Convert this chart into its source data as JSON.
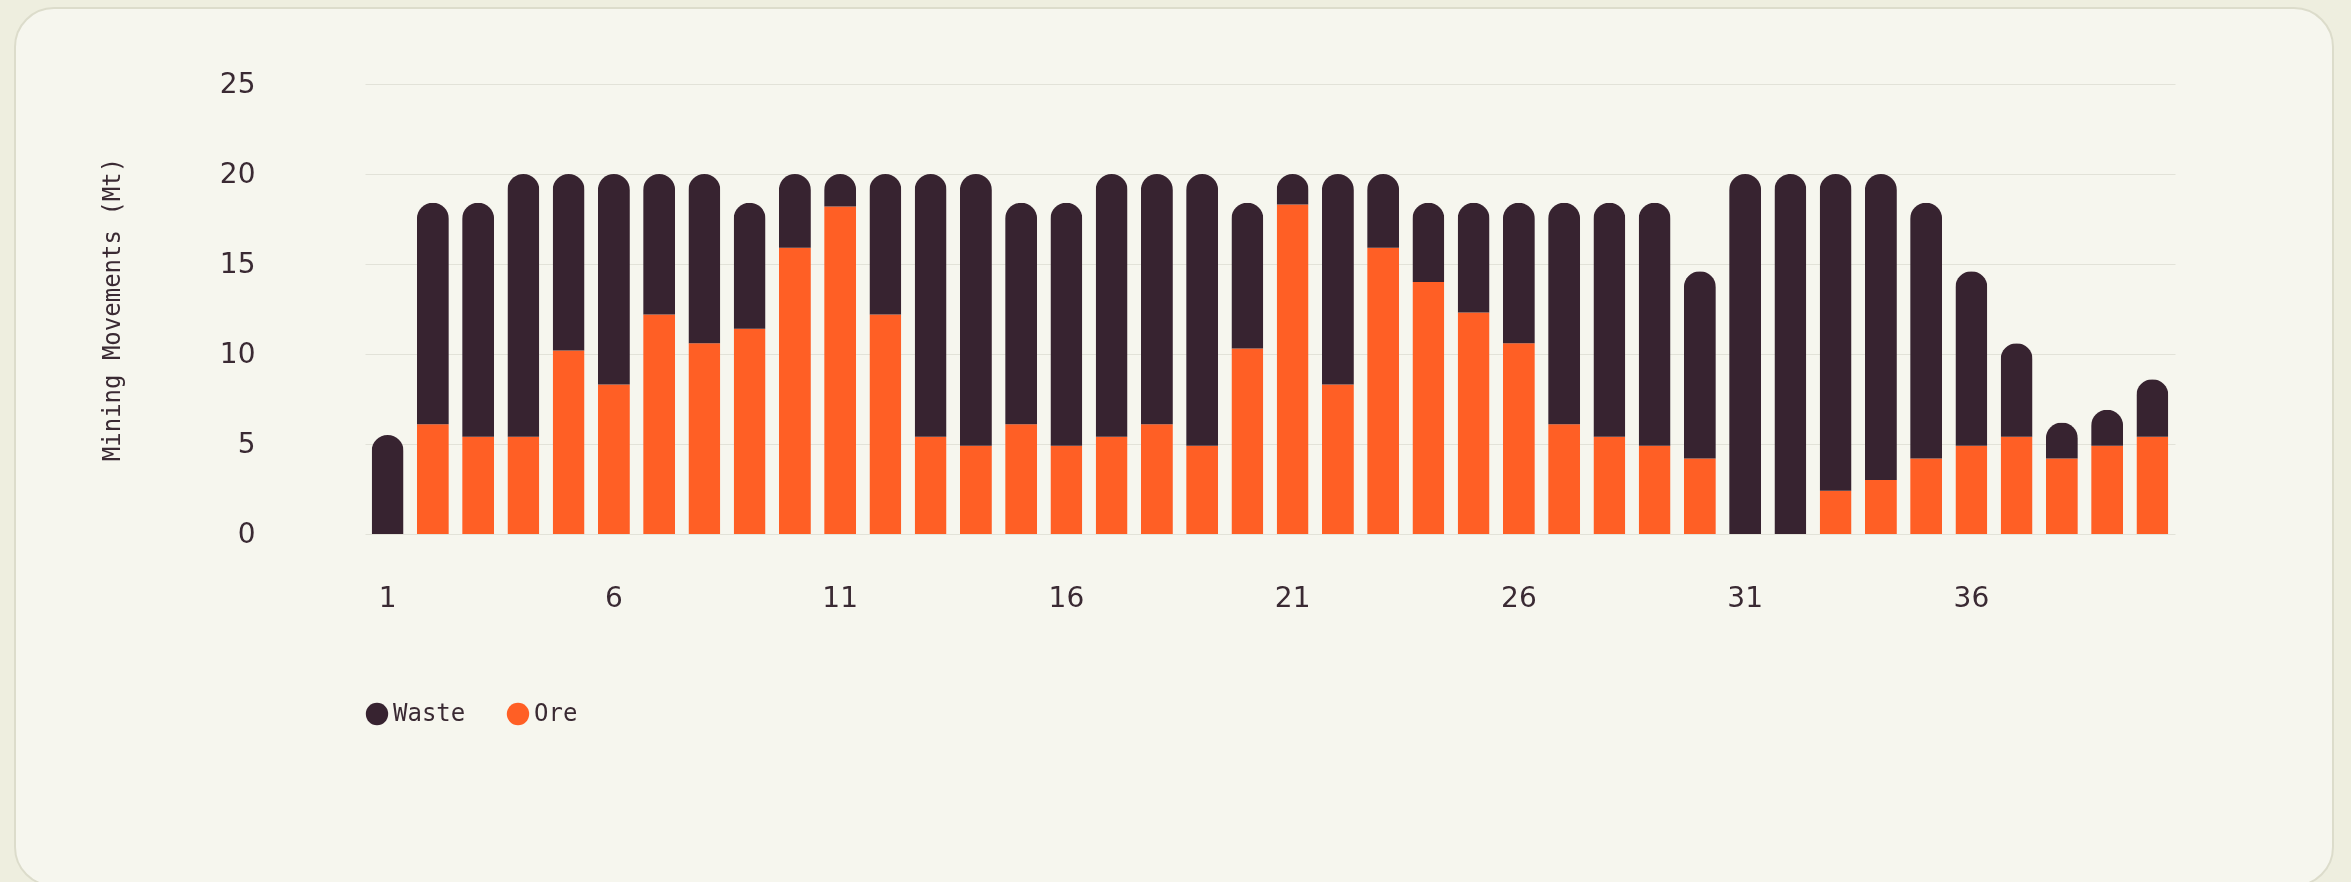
{
  "chart_data": {
    "type": "bar",
    "stacked": true,
    "ylabel": "Mining Movements (Mt)",
    "categories": [
      "1",
      null,
      null,
      null,
      null,
      "6",
      null,
      null,
      null,
      null,
      "11",
      null,
      null,
      null,
      null,
      "16",
      null,
      null,
      null,
      null,
      "21",
      null,
      null,
      null,
      null,
      "26",
      null,
      null,
      null,
      null,
      "31",
      null,
      null,
      null,
      null,
      "36",
      null,
      null,
      null,
      null
    ],
    "series": [
      {
        "name": "Ore",
        "color": "#ff5f25",
        "values": [
          0,
          6.1,
          5.4,
          5.4,
          10.2,
          8.3,
          12.2,
          10.6,
          11.4,
          15.9,
          18.2,
          12.2,
          5.4,
          4.9,
          6.1,
          4.9,
          5.4,
          6.1,
          4.9,
          10.3,
          18.3,
          8.3,
          15.9,
          14.0,
          12.3,
          10.6,
          6.1,
          5.4,
          4.9,
          4.2,
          0,
          0,
          2.4,
          3.0,
          4.2,
          4.9,
          5.4,
          4.2,
          4.9,
          5.4
        ]
      },
      {
        "name": "Waste",
        "color": "#372330",
        "values": [
          5.5,
          12.3,
          13.0,
          14.6,
          9.8,
          11.7,
          7.8,
          9.4,
          7.0,
          4.1,
          1.8,
          7.8,
          14.6,
          15.1,
          12.3,
          13.5,
          14.6,
          13.9,
          15.1,
          8.1,
          1.7,
          11.7,
          4.1,
          4.4,
          6.1,
          7.8,
          12.3,
          13.0,
          13.5,
          10.4,
          20,
          20,
          17.6,
          17.0,
          14.2,
          9.7,
          5.2,
          2.0,
          2.0,
          3.2
        ]
      }
    ],
    "ylim": [
      0,
      25
    ],
    "yticks": [
      0,
      5,
      10,
      15,
      20,
      25
    ],
    "grid": "y",
    "legend": "bottom"
  }
}
